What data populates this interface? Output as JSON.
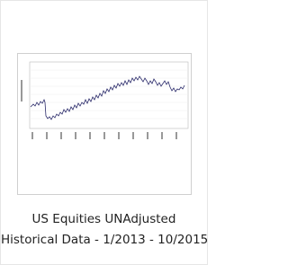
{
  "product": {
    "title_lines": [
      "US Equities UNAdjusted",
      "Historical Data - 1/2013 - 10/2015"
    ]
  }
}
